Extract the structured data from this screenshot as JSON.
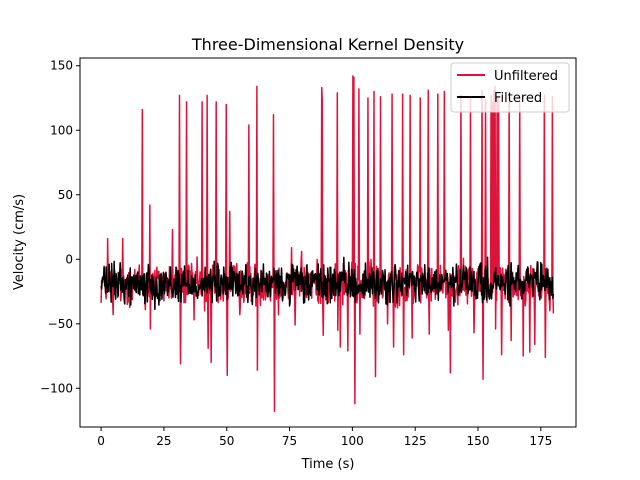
{
  "chart_data": {
    "type": "line",
    "title": "Three-Dimensional Kernel Density",
    "xlabel": "Time (s)",
    "ylabel": "Velocity (cm/s)",
    "xlim": [
      -8.4,
      189
    ],
    "ylim": [
      -130,
      156
    ],
    "xticks": [
      0,
      25,
      50,
      75,
      100,
      125,
      150,
      175
    ],
    "yticks": [
      -100,
      -50,
      0,
      50,
      100,
      150
    ],
    "grid": false,
    "legend_position": "top-right",
    "baseline": -19,
    "series": [
      {
        "name": "Unfiltered",
        "color": "#dc143c",
        "noise_amplitude": 14,
        "spikes": [
          {
            "x": 2.5,
            "y": 16
          },
          {
            "x": 4.8,
            "y": -43
          },
          {
            "x": 8.5,
            "y": 16
          },
          {
            "x": 10.3,
            "y": -35
          },
          {
            "x": 16.3,
            "y": 116
          },
          {
            "x": 17.5,
            "y": -39
          },
          {
            "x": 19.4,
            "y": 42
          },
          {
            "x": 19.7,
            "y": -54
          },
          {
            "x": 28.3,
            "y": 23
          },
          {
            "x": 31.2,
            "y": 127
          },
          {
            "x": 31.6,
            "y": -81
          },
          {
            "x": 34.0,
            "y": 122
          },
          {
            "x": 37.0,
            "y": -47
          },
          {
            "x": 40.2,
            "y": 122
          },
          {
            "x": 41.3,
            "y": -40
          },
          {
            "x": 42.2,
            "y": 127
          },
          {
            "x": 42.6,
            "y": -69
          },
          {
            "x": 43.9,
            "y": -80
          },
          {
            "x": 45.8,
            "y": 122
          },
          {
            "x": 49.8,
            "y": 120
          },
          {
            "x": 50.1,
            "y": -90
          },
          {
            "x": 51.1,
            "y": 37
          },
          {
            "x": 55.3,
            "y": -43
          },
          {
            "x": 58.8,
            "y": 104
          },
          {
            "x": 61.9,
            "y": 134
          },
          {
            "x": 62.3,
            "y": -86
          },
          {
            "x": 68.6,
            "y": 112
          },
          {
            "x": 68.9,
            "y": -118
          },
          {
            "x": 70.6,
            "y": -43
          },
          {
            "x": 75.8,
            "y": 9
          },
          {
            "x": 77.2,
            "y": -51
          },
          {
            "x": 79.8,
            "y": 6
          },
          {
            "x": 87.7,
            "y": 133
          },
          {
            "x": 88.1,
            "y": 124
          },
          {
            "x": 88.4,
            "y": -59
          },
          {
            "x": 93.9,
            "y": 129
          },
          {
            "x": 94.3,
            "y": -55
          },
          {
            "x": 95.2,
            "y": -68
          },
          {
            "x": 98.3,
            "y": -71
          },
          {
            "x": 100.2,
            "y": 142
          },
          {
            "x": 100.6,
            "y": 141
          },
          {
            "x": 100.9,
            "y": -112
          },
          {
            "x": 102.5,
            "y": 132
          },
          {
            "x": 103.1,
            "y": -58
          },
          {
            "x": 106.2,
            "y": 125
          },
          {
            "x": 108.6,
            "y": 130
          },
          {
            "x": 109.2,
            "y": -91
          },
          {
            "x": 111.2,
            "y": 126
          },
          {
            "x": 114.0,
            "y": -50
          },
          {
            "x": 115.8,
            "y": 128
          },
          {
            "x": 116.4,
            "y": -68
          },
          {
            "x": 120.0,
            "y": 128
          },
          {
            "x": 120.4,
            "y": -74
          },
          {
            "x": 123.1,
            "y": 127
          },
          {
            "x": 123.8,
            "y": -61
          },
          {
            "x": 127.0,
            "y": 125
          },
          {
            "x": 130.2,
            "y": 131
          },
          {
            "x": 130.7,
            "y": -58
          },
          {
            "x": 134.1,
            "y": 128
          },
          {
            "x": 136.6,
            "y": 130
          },
          {
            "x": 138.2,
            "y": -55
          },
          {
            "x": 139.1,
            "y": -88
          },
          {
            "x": 143.2,
            "y": 127
          },
          {
            "x": 147.0,
            "y": 126
          },
          {
            "x": 148.4,
            "y": -57
          },
          {
            "x": 151.6,
            "y": 131
          },
          {
            "x": 152.0,
            "y": -93
          },
          {
            "x": 153.1,
            "y": 124
          },
          {
            "x": 155.2,
            "y": 127
          },
          {
            "x": 155.6,
            "y": 122
          },
          {
            "x": 156.2,
            "y": 131
          },
          {
            "x": 156.8,
            "y": 134
          },
          {
            "x": 157.1,
            "y": -54
          },
          {
            "x": 157.5,
            "y": 126
          },
          {
            "x": 158.2,
            "y": 124
          },
          {
            "x": 159.4,
            "y": -74
          },
          {
            "x": 162.4,
            "y": 128
          },
          {
            "x": 163.2,
            "y": -63
          },
          {
            "x": 166.5,
            "y": 126
          },
          {
            "x": 168.0,
            "y": -75
          },
          {
            "x": 170.5,
            "y": -72
          },
          {
            "x": 172.6,
            "y": -66
          },
          {
            "x": 176.3,
            "y": 127
          },
          {
            "x": 176.8,
            "y": -76
          },
          {
            "x": 179.6,
            "y": 126
          },
          {
            "x": 180.0,
            "y": -42
          }
        ]
      },
      {
        "name": "Filtered",
        "color": "#000000",
        "noise_amplitude": 13,
        "spikes": []
      }
    ],
    "x_start": 0,
    "x_end": 180,
    "sample_step": 0.2
  }
}
